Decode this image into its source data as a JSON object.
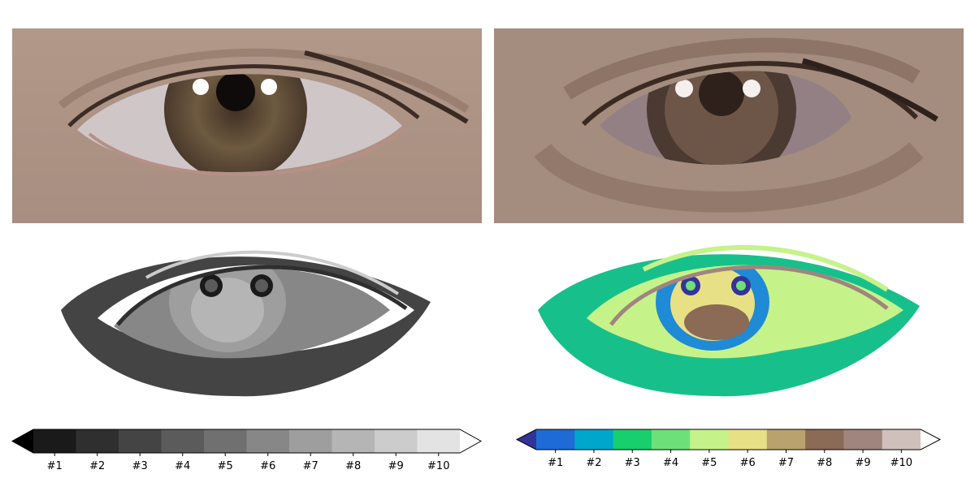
{
  "chart_data": [
    {
      "type": "heatmap",
      "panel": "photo",
      "description_colors": {
        "skin": "#ab9283",
        "iris": "#6e5a40",
        "pupil": "#111111",
        "sclera": "#c8c0c4",
        "lid": "#8a6e62"
      }
    },
    {
      "type": "heatmap",
      "panel": "quantized-brown",
      "palette": [
        "#a48d7e",
        "#8d7466",
        "#6d5648",
        "#4b3a31",
        "#2e211c",
        "#928084",
        "#f5f0ee"
      ]
    },
    {
      "type": "heatmap",
      "panel": "gray-levels",
      "colorbar": {
        "colors": [
          "#1a1a1a",
          "#2f2f2f",
          "#444444",
          "#5b5b5b",
          "#707070",
          "#878787",
          "#9e9e9e",
          "#b5b5b5",
          "#cccccc",
          "#e3e3e3"
        ],
        "under_color": "#000000",
        "over_color": "#ffffff",
        "extend": "both",
        "tick_labels": [
          "#1",
          "#2",
          "#3",
          "#4",
          "#5",
          "#6",
          "#7",
          "#8",
          "#9",
          "#10"
        ]
      }
    },
    {
      "type": "heatmap",
      "panel": "terrain-levels",
      "colorbar": {
        "colors": [
          "#1f6bd6",
          "#00a6cc",
          "#17cf6c",
          "#6ee07a",
          "#c6f28a",
          "#e8e085",
          "#b9a26e",
          "#8b6a56",
          "#a0857e",
          "#cfc0bc"
        ],
        "under_color": "#333399",
        "over_color": "#ffffff",
        "extend": "both",
        "tick_labels": [
          "#1",
          "#2",
          "#3",
          "#4",
          "#5",
          "#6",
          "#7",
          "#8",
          "#9",
          "#10"
        ]
      }
    }
  ]
}
